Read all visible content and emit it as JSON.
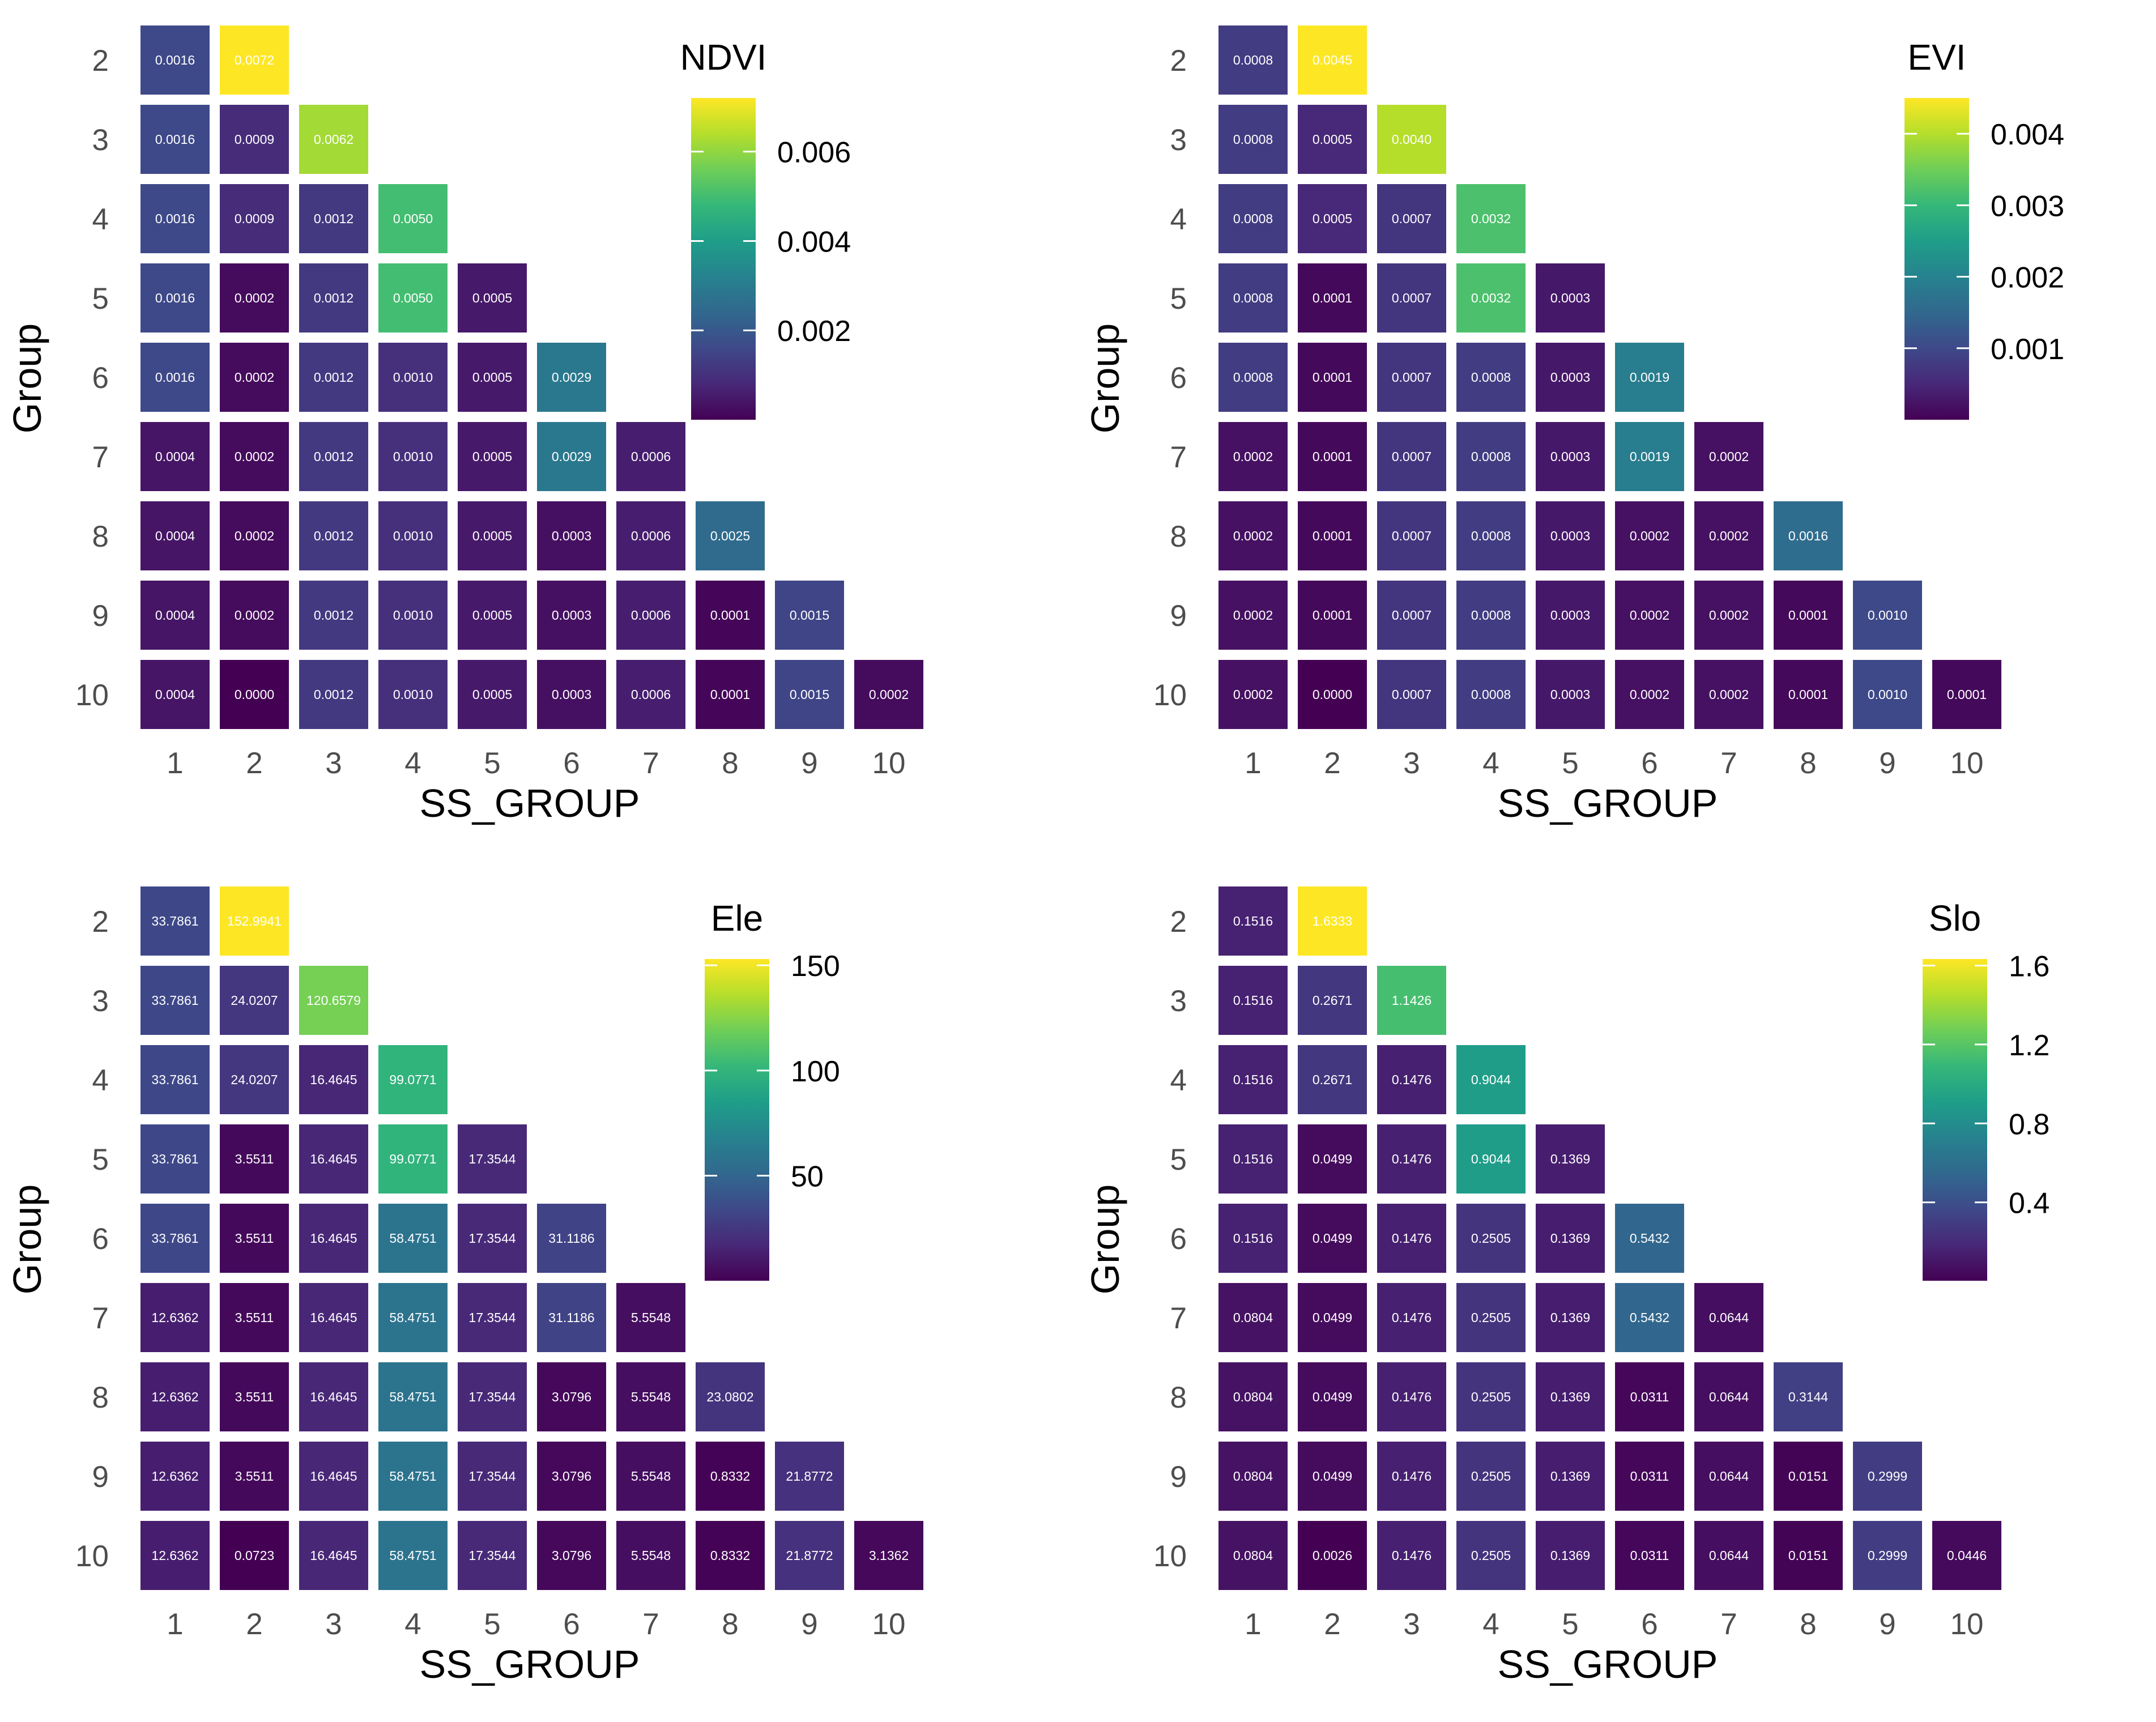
{
  "chart_data": [
    {
      "type": "heatmap",
      "title": "NDVI",
      "legend_title": "NDVI",
      "xlabel": "SS_GROUP",
      "ylabel": "Group",
      "x_categories": [
        "1",
        "2",
        "3",
        "4",
        "5",
        "6",
        "7",
        "8",
        "9",
        "10"
      ],
      "y_categories": [
        "2",
        "3",
        "4",
        "5",
        "6",
        "7",
        "8",
        "9",
        "10"
      ],
      "color_range": [
        0.0,
        0.0072
      ],
      "legend_ticks": [
        {
          "value": 0.002,
          "label": "0.002"
        },
        {
          "value": 0.004,
          "label": "0.004"
        },
        {
          "value": 0.006,
          "label": "0.006"
        }
      ],
      "rows": [
        {
          "group": "2",
          "values": [
            0.0016,
            0.0072
          ],
          "labels": [
            "0.0016",
            "0.0072"
          ]
        },
        {
          "group": "3",
          "values": [
            0.0016,
            0.0009,
            0.0062
          ],
          "labels": [
            "0.0016",
            "0.0009",
            "0.0062"
          ]
        },
        {
          "group": "4",
          "values": [
            0.0016,
            0.0009,
            0.0012,
            0.005
          ],
          "labels": [
            "0.0016",
            "0.0009",
            "0.0012",
            "0.0050"
          ]
        },
        {
          "group": "5",
          "values": [
            0.0016,
            0.0002,
            0.0012,
            0.005,
            0.0005
          ],
          "labels": [
            "0.0016",
            "0.0002",
            "0.0012",
            "0.0050",
            "0.0005"
          ]
        },
        {
          "group": "6",
          "values": [
            0.0016,
            0.0002,
            0.0012,
            0.001,
            0.0005,
            0.0029
          ],
          "labels": [
            "0.0016",
            "0.0002",
            "0.0012",
            "0.0010",
            "0.0005",
            "0.0029"
          ]
        },
        {
          "group": "7",
          "values": [
            0.0004,
            0.0002,
            0.0012,
            0.001,
            0.0005,
            0.0029,
            0.0006
          ],
          "labels": [
            "0.0004",
            "0.0002",
            "0.0012",
            "0.0010",
            "0.0005",
            "0.0029",
            "0.0006"
          ]
        },
        {
          "group": "8",
          "values": [
            0.0004,
            0.0002,
            0.0012,
            0.001,
            0.0005,
            0.0003,
            0.0006,
            0.0025
          ],
          "labels": [
            "0.0004",
            "0.0002",
            "0.0012",
            "0.0010",
            "0.0005",
            "0.0003",
            "0.0006",
            "0.0025"
          ]
        },
        {
          "group": "9",
          "values": [
            0.0004,
            0.0002,
            0.0012,
            0.001,
            0.0005,
            0.0003,
            0.0006,
            0.0001,
            0.0015
          ],
          "labels": [
            "0.0004",
            "0.0002",
            "0.0012",
            "0.0010",
            "0.0005",
            "0.0003",
            "0.0006",
            "0.0001",
            "0.0015"
          ]
        },
        {
          "group": "10",
          "values": [
            0.0004,
            0.0,
            0.0012,
            0.001,
            0.0005,
            0.0003,
            0.0006,
            0.0001,
            0.0015,
            0.0002
          ],
          "labels": [
            "0.0004",
            "0.0000",
            "0.0012",
            "0.0010",
            "0.0005",
            "0.0003",
            "0.0006",
            "0.0001",
            "0.0015",
            "0.0002"
          ]
        }
      ]
    },
    {
      "type": "heatmap",
      "title": "EVI",
      "legend_title": "EVI",
      "xlabel": "SS_GROUP",
      "ylabel": "Group",
      "x_categories": [
        "1",
        "2",
        "3",
        "4",
        "5",
        "6",
        "7",
        "8",
        "9",
        "10"
      ],
      "y_categories": [
        "2",
        "3",
        "4",
        "5",
        "6",
        "7",
        "8",
        "9",
        "10"
      ],
      "color_range": [
        0.0,
        0.0045
      ],
      "legend_ticks": [
        {
          "value": 0.001,
          "label": "0.001"
        },
        {
          "value": 0.002,
          "label": "0.002"
        },
        {
          "value": 0.003,
          "label": "0.003"
        },
        {
          "value": 0.004,
          "label": "0.004"
        }
      ],
      "rows": [
        {
          "group": "2",
          "values": [
            0.0008,
            0.0045
          ],
          "labels": [
            "0.0008",
            "0.0045"
          ]
        },
        {
          "group": "3",
          "values": [
            0.0008,
            0.0005,
            0.004
          ],
          "labels": [
            "0.0008",
            "0.0005",
            "0.0040"
          ]
        },
        {
          "group": "4",
          "values": [
            0.0008,
            0.0005,
            0.0007,
            0.0032
          ],
          "labels": [
            "0.0008",
            "0.0005",
            "0.0007",
            "0.0032"
          ]
        },
        {
          "group": "5",
          "values": [
            0.0008,
            0.0001,
            0.0007,
            0.0032,
            0.0003
          ],
          "labels": [
            "0.0008",
            "0.0001",
            "0.0007",
            "0.0032",
            "0.0003"
          ]
        },
        {
          "group": "6",
          "values": [
            0.0008,
            0.0001,
            0.0007,
            0.0008,
            0.0003,
            0.0019
          ],
          "labels": [
            "0.0008",
            "0.0001",
            "0.0007",
            "0.0008",
            "0.0003",
            "0.0019"
          ]
        },
        {
          "group": "7",
          "values": [
            0.0002,
            0.0001,
            0.0007,
            0.0008,
            0.0003,
            0.0019,
            0.0002
          ],
          "labels": [
            "0.0002",
            "0.0001",
            "0.0007",
            "0.0008",
            "0.0003",
            "0.0019",
            "0.0002"
          ]
        },
        {
          "group": "8",
          "values": [
            0.0002,
            0.0001,
            0.0007,
            0.0008,
            0.0003,
            0.0002,
            0.0002,
            0.0016
          ],
          "labels": [
            "0.0002",
            "0.0001",
            "0.0007",
            "0.0008",
            "0.0003",
            "0.0002",
            "0.0002",
            "0.0016"
          ]
        },
        {
          "group": "9",
          "values": [
            0.0002,
            0.0001,
            0.0007,
            0.0008,
            0.0003,
            0.0002,
            0.0002,
            0.0001,
            0.001
          ],
          "labels": [
            "0.0002",
            "0.0001",
            "0.0007",
            "0.0008",
            "0.0003",
            "0.0002",
            "0.0002",
            "0.0001",
            "0.0010"
          ]
        },
        {
          "group": "10",
          "values": [
            0.0002,
            0.0,
            0.0007,
            0.0008,
            0.0003,
            0.0002,
            0.0002,
            0.0001,
            0.001,
            0.0001
          ],
          "labels": [
            "0.0002",
            "0.0000",
            "0.0007",
            "0.0008",
            "0.0003",
            "0.0002",
            "0.0002",
            "0.0001",
            "0.0010",
            "0.0001"
          ]
        }
      ]
    },
    {
      "type": "heatmap",
      "title": "Ele",
      "legend_title": "Ele",
      "xlabel": "SS_GROUP",
      "ylabel": "Group",
      "x_categories": [
        "1",
        "2",
        "3",
        "4",
        "5",
        "6",
        "7",
        "8",
        "9",
        "10"
      ],
      "y_categories": [
        "2",
        "3",
        "4",
        "5",
        "6",
        "7",
        "8",
        "9",
        "10"
      ],
      "color_range": [
        0.0723,
        152.9941
      ],
      "legend_ticks": [
        {
          "value": 50,
          "label": "50"
        },
        {
          "value": 100,
          "label": "100"
        },
        {
          "value": 150,
          "label": "150"
        }
      ],
      "rows": [
        {
          "group": "2",
          "values": [
            33.7861,
            152.9941
          ],
          "labels": [
            "33.7861",
            "152.9941"
          ]
        },
        {
          "group": "3",
          "values": [
            33.7861,
            24.0207,
            120.6579
          ],
          "labels": [
            "33.7861",
            "24.0207",
            "120.6579"
          ]
        },
        {
          "group": "4",
          "values": [
            33.7861,
            24.0207,
            16.4645,
            99.0771
          ],
          "labels": [
            "33.7861",
            "24.0207",
            "16.4645",
            "99.0771"
          ]
        },
        {
          "group": "5",
          "values": [
            33.7861,
            3.5511,
            16.4645,
            99.0771,
            17.3544
          ],
          "labels": [
            "33.7861",
            "3.5511",
            "16.4645",
            "99.0771",
            "17.3544"
          ]
        },
        {
          "group": "6",
          "values": [
            33.7861,
            3.5511,
            16.4645,
            58.4751,
            17.3544,
            31.1186
          ],
          "labels": [
            "33.7861",
            "3.5511",
            "16.4645",
            "58.4751",
            "17.3544",
            "31.1186"
          ]
        },
        {
          "group": "7",
          "values": [
            12.6362,
            3.5511,
            16.4645,
            58.4751,
            17.3544,
            31.1186,
            5.5548
          ],
          "labels": [
            "12.6362",
            "3.5511",
            "16.4645",
            "58.4751",
            "17.3544",
            "31.1186",
            "5.5548"
          ]
        },
        {
          "group": "8",
          "values": [
            12.6362,
            3.5511,
            16.4645,
            58.4751,
            17.3544,
            3.0796,
            5.5548,
            23.0802
          ],
          "labels": [
            "12.6362",
            "3.5511",
            "16.4645",
            "58.4751",
            "17.3544",
            "3.0796",
            "5.5548",
            "23.0802"
          ]
        },
        {
          "group": "9",
          "values": [
            12.6362,
            3.5511,
            16.4645,
            58.4751,
            17.3544,
            3.0796,
            5.5548,
            0.8332,
            21.8772
          ],
          "labels": [
            "12.6362",
            "3.5511",
            "16.4645",
            "58.4751",
            "17.3544",
            "3.0796",
            "5.5548",
            "0.8332",
            "21.8772"
          ]
        },
        {
          "group": "10",
          "values": [
            12.6362,
            0.0723,
            16.4645,
            58.4751,
            17.3544,
            3.0796,
            5.5548,
            0.8332,
            21.8772,
            3.1362
          ],
          "labels": [
            "12.6362",
            "0.0723",
            "16.4645",
            "58.4751",
            "17.3544",
            "3.0796",
            "5.5548",
            "0.8332",
            "21.8772",
            "3.1362"
          ]
        }
      ]
    },
    {
      "type": "heatmap",
      "title": "Slo",
      "legend_title": "Slo",
      "xlabel": "SS_GROUP",
      "ylabel": "Group",
      "x_categories": [
        "1",
        "2",
        "3",
        "4",
        "5",
        "6",
        "7",
        "8",
        "9",
        "10"
      ],
      "y_categories": [
        "2",
        "3",
        "4",
        "5",
        "6",
        "7",
        "8",
        "9",
        "10"
      ],
      "color_range": [
        0.0026,
        1.6333
      ],
      "legend_ticks": [
        {
          "value": 0.4,
          "label": "0.4"
        },
        {
          "value": 0.8,
          "label": "0.8"
        },
        {
          "value": 1.2,
          "label": "1.2"
        },
        {
          "value": 1.6,
          "label": "1.6"
        }
      ],
      "rows": [
        {
          "group": "2",
          "values": [
            0.1516,
            1.6333
          ],
          "labels": [
            "0.1516",
            "1.6333"
          ]
        },
        {
          "group": "3",
          "values": [
            0.1516,
            0.2671,
            1.1426
          ],
          "labels": [
            "0.1516",
            "0.2671",
            "1.1426"
          ]
        },
        {
          "group": "4",
          "values": [
            0.1516,
            0.2671,
            0.1476,
            0.9044
          ],
          "labels": [
            "0.1516",
            "0.2671",
            "0.1476",
            "0.9044"
          ]
        },
        {
          "group": "5",
          "values": [
            0.1516,
            0.0499,
            0.1476,
            0.9044,
            0.1369
          ],
          "labels": [
            "0.1516",
            "0.0499",
            "0.1476",
            "0.9044",
            "0.1369"
          ]
        },
        {
          "group": "6",
          "values": [
            0.1516,
            0.0499,
            0.1476,
            0.2505,
            0.1369,
            0.5432
          ],
          "labels": [
            "0.1516",
            "0.0499",
            "0.1476",
            "0.2505",
            "0.1369",
            "0.5432"
          ]
        },
        {
          "group": "7",
          "values": [
            0.0804,
            0.0499,
            0.1476,
            0.2505,
            0.1369,
            0.5432,
            0.0644
          ],
          "labels": [
            "0.0804",
            "0.0499",
            "0.1476",
            "0.2505",
            "0.1369",
            "0.5432",
            "0.0644"
          ]
        },
        {
          "group": "8",
          "values": [
            0.0804,
            0.0499,
            0.1476,
            0.2505,
            0.1369,
            0.0311,
            0.0644,
            0.3144
          ],
          "labels": [
            "0.0804",
            "0.0499",
            "0.1476",
            "0.2505",
            "0.1369",
            "0.0311",
            "0.0644",
            "0.3144"
          ]
        },
        {
          "group": "9",
          "values": [
            0.0804,
            0.0499,
            0.1476,
            0.2505,
            0.1369,
            0.0311,
            0.0644,
            0.0151,
            0.2999
          ],
          "labels": [
            "0.0804",
            "0.0499",
            "0.1476",
            "0.2505",
            "0.1369",
            "0.0311",
            "0.0644",
            "0.0151",
            "0.2999"
          ]
        },
        {
          "group": "10",
          "values": [
            0.0804,
            0.0026,
            0.1476,
            0.2505,
            0.1369,
            0.0311,
            0.0644,
            0.0151,
            0.2999,
            0.0446
          ],
          "labels": [
            "0.0804",
            "0.0026",
            "0.1476",
            "0.2505",
            "0.1369",
            "0.0311",
            "0.0644",
            "0.0151",
            "0.2999",
            "0.0446"
          ]
        }
      ]
    }
  ]
}
